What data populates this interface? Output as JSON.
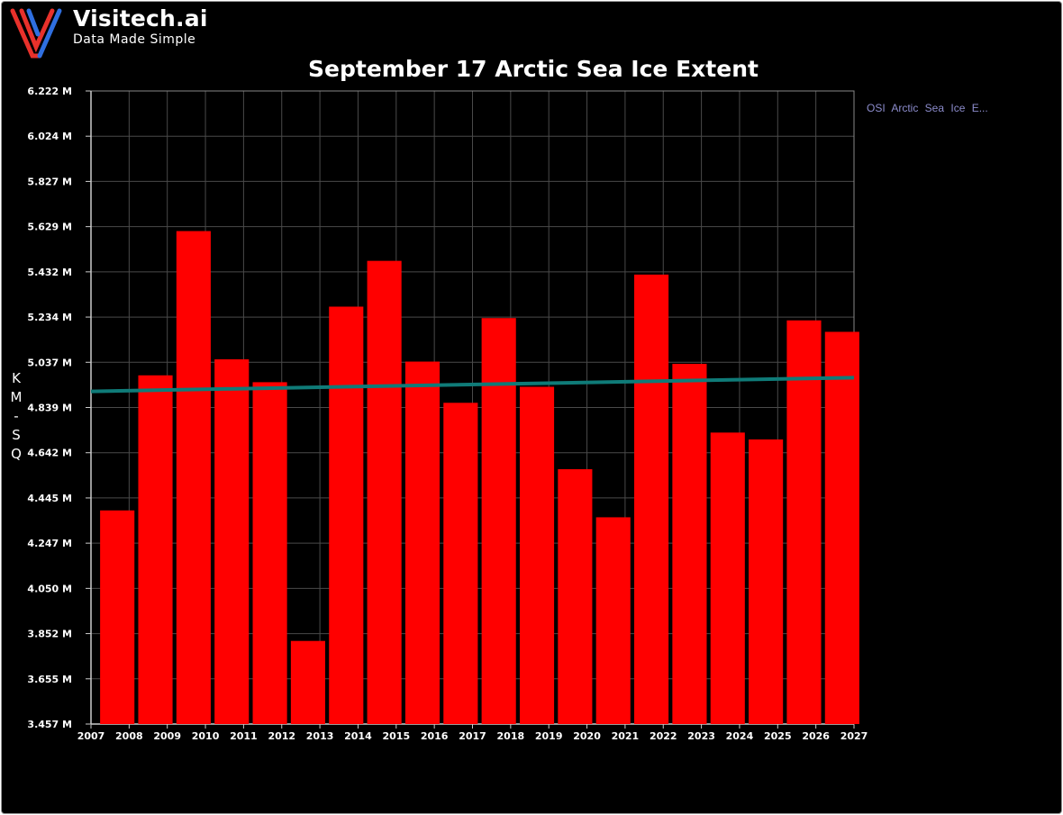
{
  "brand": {
    "name": "Visitech.ai",
    "tagline": "Data Made Simple",
    "logo_colors": [
      "#e8312b",
      "#2f6fe0"
    ]
  },
  "chart_data": {
    "type": "bar",
    "title": "September 17 Arctic Sea Ice Extent",
    "xlabel": "",
    "ylabel": "KM-SQ",
    "ylabel_chars": [
      "K",
      "M",
      "-",
      "S",
      "Q"
    ],
    "x_ticks": [
      "2007",
      "2008",
      "2009",
      "2010",
      "2011",
      "2012",
      "2013",
      "2014",
      "2015",
      "2016",
      "2017",
      "2018",
      "2019",
      "2020",
      "2021",
      "2022",
      "2023",
      "2024",
      "2025",
      "2026",
      "2027"
    ],
    "y_ticks": [
      "3.457 M",
      "3.655 M",
      "3.852 M",
      "4.050 M",
      "4.247 M",
      "4.445 M",
      "4.642 M",
      "4.839 M",
      "5.037 M",
      "5.234 M",
      "5.432 M",
      "5.629 M",
      "5.827 M",
      "6.024 M",
      "6.222 M"
    ],
    "ylim": [
      3.457,
      6.222
    ],
    "xlim": [
      2007,
      2027
    ],
    "categories": [
      "2007",
      "2008",
      "2009",
      "2010",
      "2011",
      "2012",
      "2013",
      "2014",
      "2015",
      "2016",
      "2017",
      "2018",
      "2019",
      "2020",
      "2021",
      "2022",
      "2023",
      "2024",
      "2025",
      "2026"
    ],
    "series": [
      {
        "name": "OSI Arctic Sea Ice E...",
        "values": [
          4.39,
          4.98,
          5.61,
          5.05,
          4.95,
          3.82,
          5.28,
          5.48,
          5.04,
          4.86,
          5.23,
          4.93,
          4.57,
          4.36,
          5.42,
          5.03,
          4.73,
          4.7,
          5.22,
          5.17
        ],
        "color": "#ff0000"
      }
    ],
    "trend_line": {
      "start": [
        2007,
        4.91
      ],
      "end": [
        2027,
        4.97
      ],
      "color": "#0f7b78"
    },
    "grid": true,
    "legend_placement": "top-right",
    "colors": {
      "background": "#000000",
      "bar": "#ff0000",
      "grid": "#4a4a4a",
      "axis": "#cccccc",
      "legend_text": "#8c8ccc"
    }
  }
}
